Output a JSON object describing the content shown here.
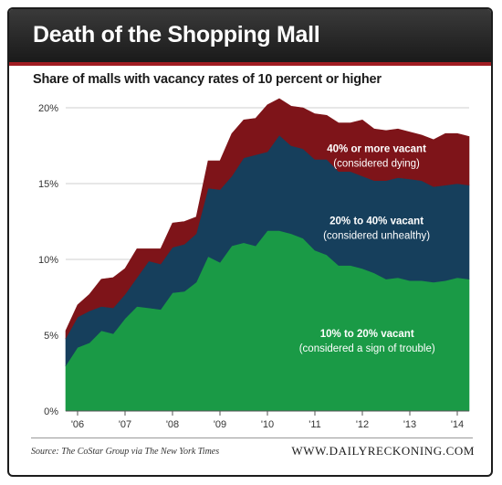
{
  "header": {
    "title": "Death of the Shopping Mall"
  },
  "chart_data": {
    "type": "area",
    "stacked": true,
    "title": "Share of malls with vacancy rates of 10 percent or higher",
    "xlabel": "",
    "ylabel": "",
    "ylim": [
      0,
      20
    ],
    "yticks": [
      "0%",
      "5%",
      "10%",
      "15%",
      "20%"
    ],
    "ytick_values": [
      0,
      5,
      10,
      15,
      20
    ],
    "xticks": [
      "'06",
      "'07",
      "'08",
      "'09",
      "'10",
      "'11",
      "'12",
      "'13",
      "'14"
    ],
    "xtick_values": [
      2006,
      2007,
      2008,
      2009,
      2010,
      2011,
      2012,
      2013,
      2014
    ],
    "grid": "horizontal",
    "x": [
      2005.75,
      2006.0,
      2006.25,
      2006.5,
      2006.75,
      2007.0,
      2007.25,
      2007.5,
      2007.75,
      2008.0,
      2008.25,
      2008.5,
      2008.75,
      2009.0,
      2009.25,
      2009.5,
      2009.75,
      2010.0,
      2010.25,
      2010.5,
      2010.75,
      2011.0,
      2011.25,
      2011.5,
      2011.75,
      2012.0,
      2012.25,
      2012.5,
      2012.75,
      2013.0,
      2013.25,
      2013.5,
      2013.75,
      2014.0,
      2014.25
    ],
    "series": [
      {
        "name": "10% to 20% vacant",
        "color": "#1a9a46",
        "values": [
          3.0,
          4.2,
          4.5,
          5.3,
          5.1,
          6.1,
          6.9,
          6.8,
          6.7,
          7.8,
          7.9,
          8.5,
          10.2,
          9.8,
          10.9,
          11.1,
          10.9,
          11.9,
          11.9,
          11.7,
          11.4,
          10.6,
          10.3,
          9.6,
          9.6,
          9.4,
          9.1,
          8.7,
          8.8,
          8.6,
          8.6,
          8.5,
          8.6,
          8.8,
          8.7
        ]
      },
      {
        "name": "20% to 40% vacant",
        "color": "#163f5c",
        "values": [
          1.8,
          2.0,
          2.1,
          1.6,
          1.7,
          1.6,
          1.9,
          3.1,
          3.0,
          3.0,
          3.1,
          3.2,
          4.5,
          4.8,
          4.6,
          5.6,
          6.0,
          5.2,
          6.3,
          5.8,
          5.9,
          6.0,
          6.3,
          6.2,
          6.2,
          6.1,
          6.1,
          6.5,
          6.6,
          6.7,
          6.6,
          6.3,
          6.3,
          6.2,
          6.2
        ]
      },
      {
        "name": "40% or more vacant",
        "color": "#7e1419",
        "values": [
          0.5,
          0.8,
          1.1,
          1.8,
          2.0,
          1.7,
          1.9,
          0.8,
          1.0,
          1.6,
          1.5,
          1.1,
          1.8,
          1.9,
          2.8,
          2.5,
          2.4,
          3.1,
          2.4,
          2.6,
          2.7,
          3.0,
          2.9,
          3.2,
          3.2,
          3.7,
          3.4,
          3.3,
          3.2,
          3.1,
          3.0,
          3.1,
          3.4,
          3.3,
          3.2
        ]
      }
    ],
    "annotations": [
      {
        "series": "40% or more vacant",
        "label": "40% or more vacant",
        "note": "(considered dying)"
      },
      {
        "series": "20% to 40% vacant",
        "label": "20% to 40% vacant",
        "note": "(considered unhealthy)"
      },
      {
        "series": "10% to 20% vacant",
        "label": "10% to 20% vacant",
        "note": "(considered a sign of trouble)"
      }
    ]
  },
  "footer": {
    "source": "Source: The CoStar Group via The New York Times",
    "site": "WWW.DAILYRECKONING.COM"
  }
}
